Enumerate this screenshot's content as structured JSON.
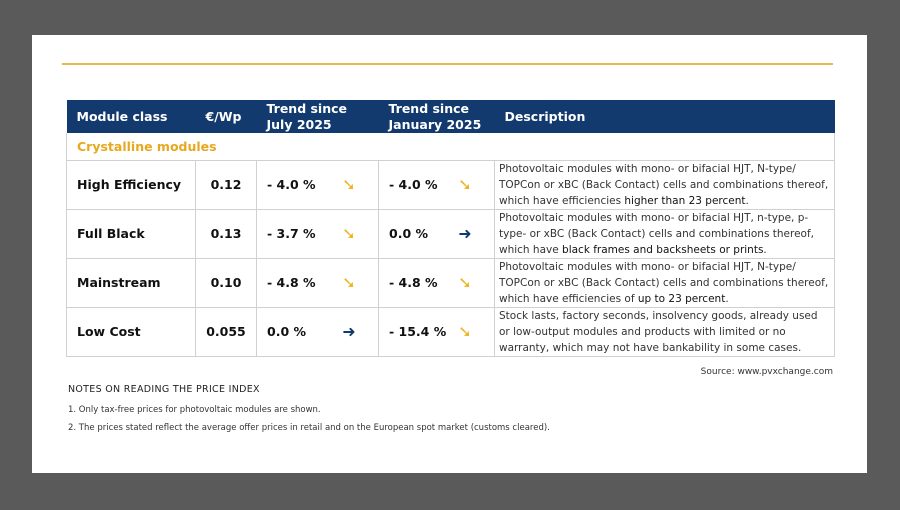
{
  "header": {
    "module_class": "Module class",
    "price": "€/Wp",
    "trend_july": "Trend since July 2025",
    "trend_jan": "Trend since January 2025",
    "description": "Description"
  },
  "section": "Crystalline modules",
  "rows": [
    {
      "name": "High Efficiency",
      "price": "0.12",
      "july": "-  4.0 %",
      "july_icon": "arrow-down-right",
      "jan": "-  4.0 %",
      "jan_icon": "arrow-down-right",
      "desc_pre": "Photovoltaic modules with mono- or bifacial HJT, N-type/ TOPCon or xBC (Back Contact) cells and combinations thereof, which have efficiencies ",
      "desc_bold": "higher than 23 percent",
      "desc_post": "."
    },
    {
      "name": "Full Black",
      "price": "0.13",
      "july": "-  3.7 %",
      "july_icon": "arrow-down-right",
      "jan": "0.0 %",
      "jan_icon": "arrow-right",
      "desc_pre": "Photovoltaic modules with mono- or bifacial HJT, n-type, p-type- or xBC (Back Contact) cells and combinations thereof, which have ",
      "desc_bold": "black frames and backsheets or prints",
      "desc_post": "."
    },
    {
      "name": "Mainstream",
      "price": "0.10",
      "july": "-  4.8 %",
      "july_icon": "arrow-down-right",
      "jan": "-  4.8 %",
      "jan_icon": "arrow-down-right",
      "desc_pre": "Photovoltaic modules with mono- or bifacial HJT, N-type/ TOPCon or xBC (Back Contact) cells and combinations thereof, which have efficiencies of ",
      "desc_bold": "up to 23 percent",
      "desc_post": "."
    },
    {
      "name": "Low Cost",
      "price": "0.055",
      "july": "0.0 %",
      "july_icon": "arrow-right",
      "jan": "- 15.4 %",
      "jan_icon": "arrow-down-right",
      "desc_pre": "Stock lasts, factory seconds, insolvency goods, already used or low-output modules and products with limited or no warranty, which may not have bankability in some cases.",
      "desc_bold": "",
      "desc_post": ""
    }
  ],
  "source": "Source: www.pvxchange.com",
  "notes_title": "NOTES ON READING THE PRICE INDEX",
  "notes": [
    "1.   Only tax-free prices for photovoltaic modules are shown.",
    "2.  The prices stated reflect the average offer prices in retail and on the European spot market (customs cleared)."
  ],
  "colors": {
    "header": "#123a6e",
    "accent": "#e8b84a"
  }
}
